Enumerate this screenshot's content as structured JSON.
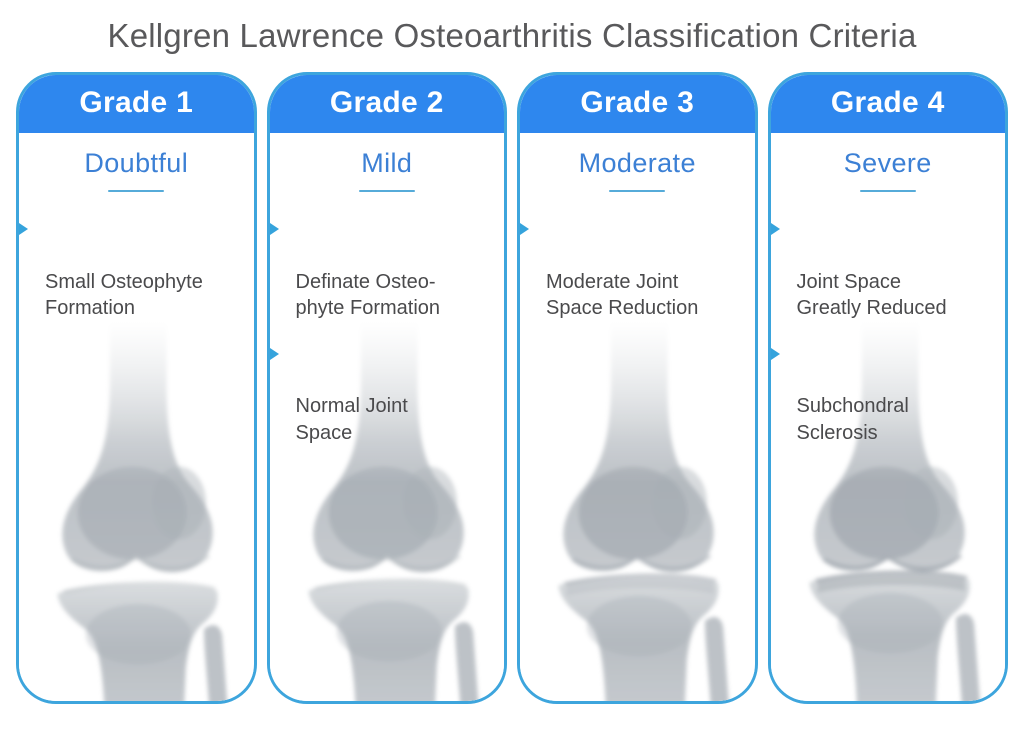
{
  "title": "Kellgren Lawrence Osteoarthritis Classification Criteria",
  "icons": {
    "bullet_icon": "triangle-right-icon",
    "xray_image": "knee-xray-image"
  },
  "colors": {
    "header_blue": "#2e87ee",
    "card_border_cyan": "#3da5dd",
    "severity_blue": "#3c80d5",
    "underline_cyan": "#56abd9",
    "bullet_arrow_cyan": "#35a3dc",
    "finding_text_gray": "#4a4a4c",
    "title_gray": "#59595b"
  },
  "grades": [
    {
      "label": "Grade 1",
      "severity": "Doubtful",
      "severity_level": 1,
      "findings": [
        "Small Osteophyte\nFormation"
      ],
      "xray_alt": "Knee X-ray, doubtful osteoarthritis: normal joint space, small osteophyte formation"
    },
    {
      "label": "Grade 2",
      "severity": "Mild",
      "severity_level": 2,
      "findings": [
        "Definate Osteo-\nphyte Formation",
        "Normal Joint\nSpace"
      ],
      "xray_alt": "Knee X-ray, mild osteoarthritis: definite osteophyte formation, normal joint space"
    },
    {
      "label": "Grade 3",
      "severity": "Moderate",
      "severity_level": 3,
      "findings": [
        "Moderate Joint\nSpace Reduction"
      ],
      "xray_alt": "Knee X-ray, moderate osteoarthritis: moderate joint space reduction"
    },
    {
      "label": "Grade 4",
      "severity": "Severe",
      "severity_level": 4,
      "findings": [
        "Joint Space\nGreatly Reduced",
        "Subchondral\nSclerosis"
      ],
      "xray_alt": "Knee X-ray, severe osteoarthritis: joint space greatly reduced, subchondral sclerosis"
    }
  ]
}
